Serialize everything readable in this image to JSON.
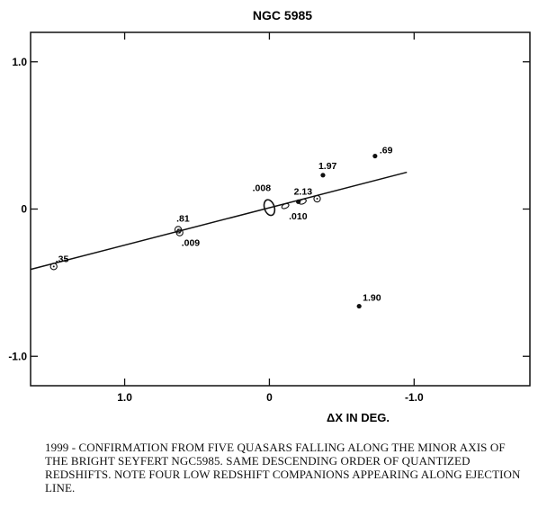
{
  "chart_data": {
    "type": "scatter",
    "title": "NGC 5985",
    "xlabel": "ΔX IN DEG.",
    "ylabel": "",
    "xlim": [
      1.65,
      -1.8
    ],
    "ylim": [
      -1.2,
      1.2
    ],
    "x_reversed": true,
    "x_ticks": [
      {
        "value": 1.0,
        "label": "1.0"
      },
      {
        "value": 0,
        "label": "0"
      },
      {
        "value": -1.0,
        "label": "-1.0"
      }
    ],
    "y_ticks": [
      {
        "value": 1.0,
        "label": "1.0"
      },
      {
        "value": 0,
        "label": "0"
      },
      {
        "value": -1.0,
        "label": "-1.0"
      }
    ],
    "grid": false,
    "fit_line": {
      "x": [
        1.65,
        -0.95
      ],
      "y": [
        -0.41,
        0.25
      ]
    },
    "galaxy": {
      "x": 0.0,
      "y": 0.01
    },
    "points": [
      {
        "label": ".35",
        "x": 1.49,
        "y": -0.39,
        "marker": "open"
      },
      {
        "label": ".81",
        "x": 0.63,
        "y": -0.14,
        "marker": "open"
      },
      {
        "label": ".009",
        "x": 0.62,
        "y": -0.16,
        "marker": "open"
      },
      {
        "label": ".008",
        "x": 0.03,
        "y": 0.03,
        "marker": "none"
      },
      {
        "label": ".010",
        "x": -0.11,
        "y": 0.02,
        "marker": "ellipse"
      },
      {
        "label": "2.13",
        "x": -0.2,
        "y": 0.05,
        "marker": "filled"
      },
      {
        "label": "1.97",
        "x": -0.37,
        "y": 0.23,
        "marker": "filled"
      },
      {
        "label": ".69",
        "x": -0.73,
        "y": 0.36,
        "marker": "filled"
      },
      {
        "label": "1.90",
        "x": -0.62,
        "y": -0.66,
        "marker": "filled"
      }
    ],
    "extra_markers": [
      {
        "x": -0.23,
        "y": 0.05,
        "marker": "ellipse"
      },
      {
        "x": -0.33,
        "y": 0.07,
        "marker": "open"
      }
    ]
  },
  "caption": "1999 - Confirmation from five quasars falling along the minor axis of the bright Seyfert NGC5985. Same descending order of quantized redshifts. Note four low redshift companions appearing along ejection line."
}
